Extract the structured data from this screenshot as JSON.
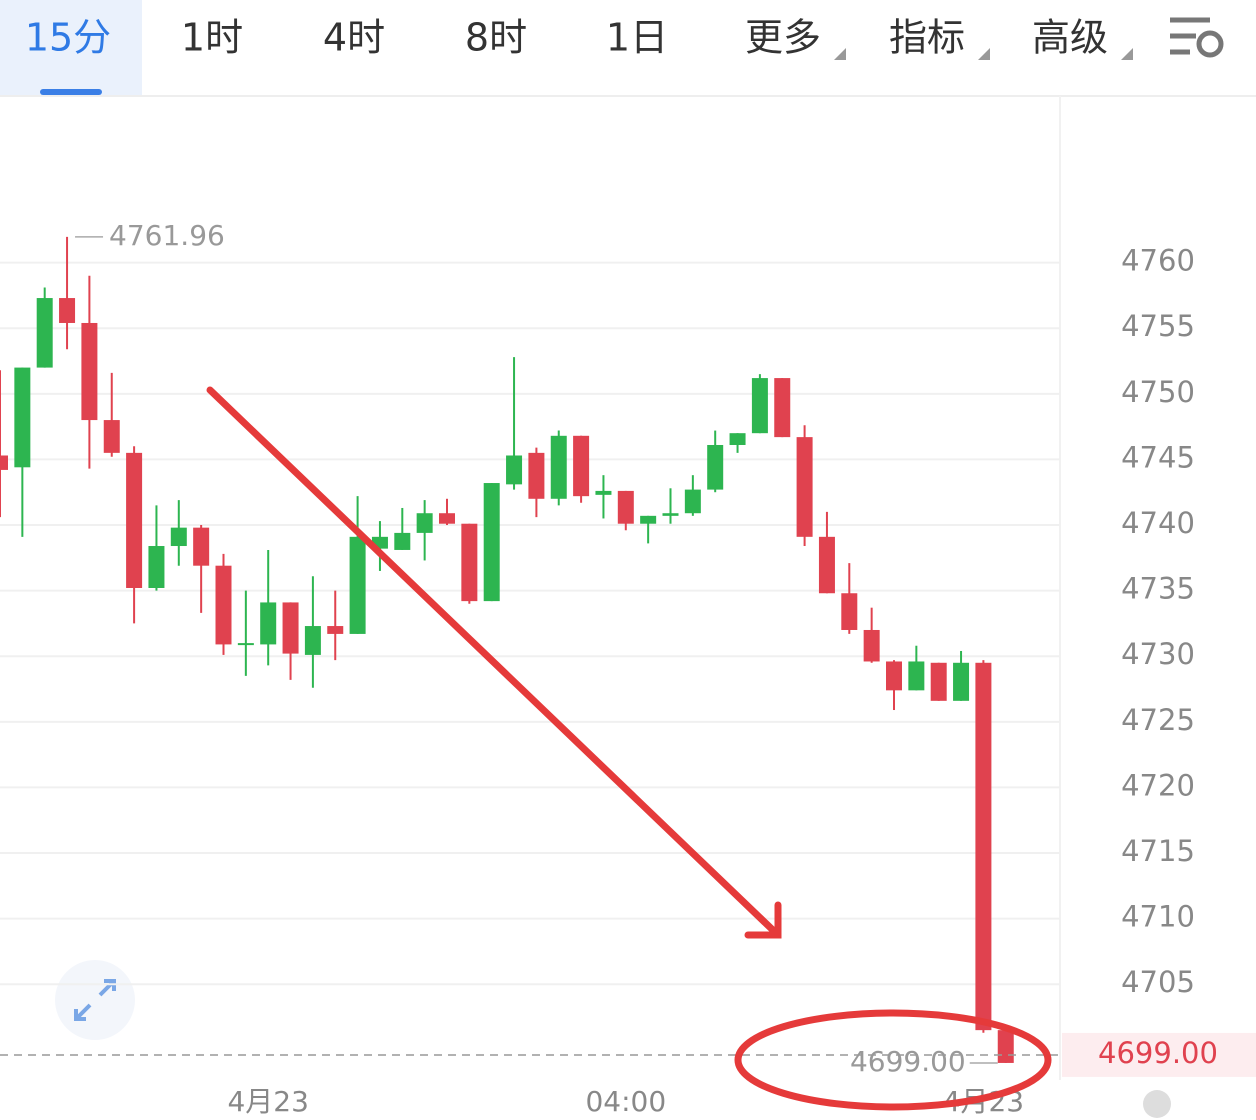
{
  "toolbar": {
    "tabs": [
      "15分",
      "1时",
      "4时",
      "8时",
      "1日",
      "更多",
      "指标",
      "高级"
    ],
    "active": 0
  },
  "chart_data": {
    "type": "candlestick",
    "categories": [
      null,
      null,
      null,
      null,
      null,
      null,
      null,
      null,
      null,
      null,
      null,
      null,
      "4月23",
      null,
      null,
      null,
      null,
      null,
      null,
      null,
      null,
      null,
      null,
      null,
      null,
      null,
      null,
      null,
      "04:00",
      null,
      null,
      null,
      null,
      null,
      null,
      null,
      null,
      null,
      null,
      null,
      null,
      null,
      null,
      null,
      "4月23",
      null
    ],
    "open": [
      4745.3,
      4744.4,
      4752.0,
      4757.3,
      4755.4,
      4748.0,
      4745.5,
      4735.2,
      4738.4,
      4739.8,
      4736.9,
      4730.9,
      4730.9,
      4734.1,
      4730.1,
      4732.3,
      4731.7,
      4738.2,
      4738.1,
      4739.4,
      4740.9,
      4740.1,
      4734.2,
      4743.1,
      4745.5,
      4742.0,
      4746.8,
      4742.3,
      4742.6,
      4740.1,
      4740.7,
      4740.9,
      4742.7,
      4746.1,
      4747.0,
      4751.2,
      4746.7,
      4739.1,
      4734.8,
      4732.0,
      4729.6,
      4727.4,
      4729.5,
      4726.6,
      4729.5,
      4701.5
    ],
    "high": [
      4751.8,
      4752.0,
      4758.1,
      4761.96,
      4759.0,
      4751.6,
      4746.0,
      4741.5,
      4741.9,
      4740.0,
      4737.8,
      4735.0,
      4738.1,
      4734.1,
      4736.1,
      4735.0,
      4742.2,
      4740.3,
      4741.3,
      4741.9,
      4742.0,
      4740.1,
      4743.2,
      4752.8,
      4745.9,
      4747.2,
      4746.8,
      4743.8,
      4742.6,
      4740.7,
      4742.8,
      4743.8,
      4747.2,
      4747.0,
      4751.5,
      4751.2,
      4747.6,
      4741.0,
      4737.1,
      4733.7,
      4729.7,
      4730.8,
      4729.5,
      4730.4,
      4729.7,
      4701.5
    ],
    "low": [
      4740.6,
      4739.1,
      4752.0,
      4753.4,
      4744.3,
      4745.2,
      4732.5,
      4735.0,
      4736.9,
      4733.3,
      4730.1,
      4728.5,
      4729.3,
      4728.2,
      4727.6,
      4729.7,
      4731.7,
      4736.5,
      4738.1,
      4737.3,
      4740.0,
      4734.0,
      4734.2,
      4742.7,
      4740.6,
      4741.5,
      4741.7,
      4740.5,
      4739.6,
      4738.6,
      4740.1,
      4740.7,
      4742.5,
      4745.5,
      4747.0,
      4746.7,
      4738.4,
      4734.8,
      4731.7,
      4729.5,
      4725.9,
      4727.4,
      4726.6,
      4726.6,
      4701.3,
      4699.0
    ],
    "close": [
      4744.2,
      4752.0,
      4757.3,
      4755.4,
      4748.0,
      4745.5,
      4735.2,
      4738.4,
      4739.8,
      4736.9,
      4730.9,
      4731.0,
      4734.1,
      4730.2,
      4732.3,
      4731.7,
      4739.1,
      4739.1,
      4739.4,
      4740.9,
      4740.1,
      4734.2,
      4743.2,
      4745.3,
      4742.0,
      4746.8,
      4742.2,
      4742.6,
      4740.1,
      4740.7,
      4740.9,
      4742.7,
      4746.1,
      4747.0,
      4751.2,
      4746.7,
      4739.1,
      4734.8,
      4732.0,
      4729.6,
      4727.4,
      4729.6,
      4726.6,
      4729.5,
      4701.5,
      4699.0
    ],
    "up_color": "#2db550",
    "down_color": "#e0424f",
    "ylim": [
      4697.7,
      4772.7
    ],
    "yticks": [
      4705,
      4710,
      4715,
      4720,
      4725,
      4730,
      4735,
      4740,
      4745,
      4750,
      4755,
      4760
    ],
    "grid": true,
    "high_annotation": 4761.96,
    "low_annotation": {
      "value": 4699,
      "label": "4699.00"
    },
    "current_price": {
      "value": 4699,
      "label": "4699.00"
    }
  }
}
